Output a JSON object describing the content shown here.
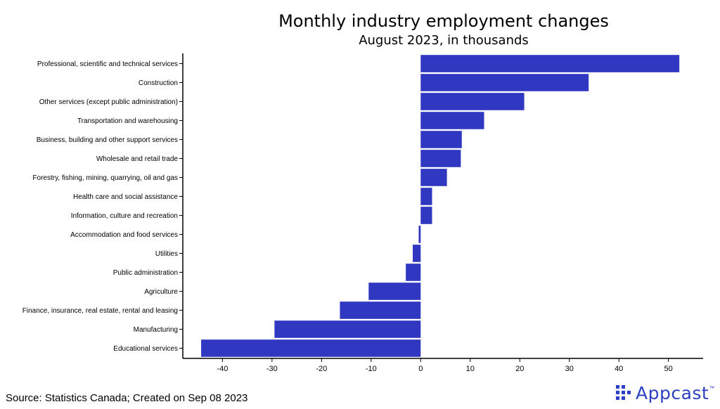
{
  "chart_data": {
    "type": "bar",
    "orientation": "horizontal",
    "title": "Monthly industry employment changes",
    "subtitle": "August 2023, in thousands",
    "xlabel": "",
    "ylabel": "",
    "xlim": [
      -48,
      57
    ],
    "xticks": [
      -40,
      -30,
      -20,
      -10,
      0,
      10,
      20,
      30,
      40,
      50
    ],
    "categories": [
      "Professional, scientific and technical services",
      "Construction",
      "Other services (except public administration)",
      "Transportation and warehousing",
      "Business, building and other support services",
      "Wholesale and retail trade",
      "Forestry, fishing, mining, quarrying, oil and gas",
      "Health care and social assistance",
      "Information, culture and recreation",
      "Accommodation and food services",
      "Utilities",
      "Public administration",
      "Agriculture",
      "Finance, insurance, real estate, rental and leasing",
      "Manufacturing",
      "Educational services"
    ],
    "values": [
      52.2,
      33.9,
      20.9,
      12.8,
      8.3,
      8.1,
      5.3,
      2.3,
      2.3,
      -0.4,
      -1.6,
      -3.0,
      -10.5,
      -16.3,
      -29.5,
      -44.3
    ],
    "bar_color": "#3038c2",
    "grid": false
  },
  "footer": {
    "source": "Source: Statistics Canada; Created on Sep 08 2023"
  },
  "logo": {
    "text": "Appcast",
    "mark": "™",
    "color": "#2d3fc3"
  }
}
